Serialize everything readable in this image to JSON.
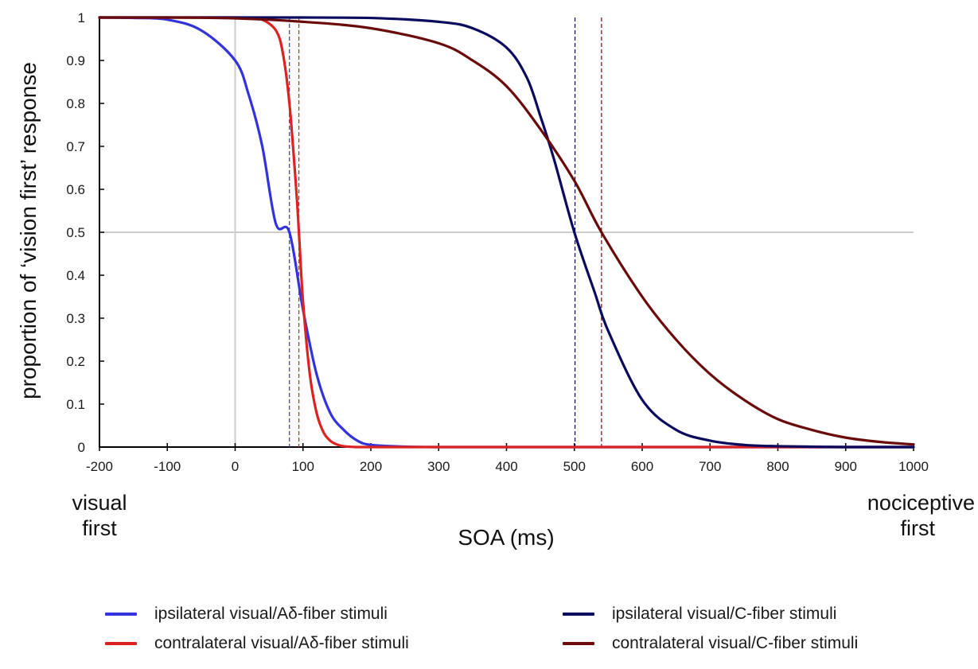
{
  "chart_data": {
    "type": "line",
    "xlabel": "SOA (ms)",
    "ylabel": "proportion of ‘vision first’ response",
    "xlim": [
      -200,
      1000
    ],
    "ylim": [
      0,
      1
    ],
    "x_ticks": [
      "-200",
      "-100",
      "0",
      "100",
      "200",
      "300",
      "400",
      "500",
      "600",
      "700",
      "800",
      "900",
      "1000"
    ],
    "y_ticks": [
      "0",
      "0.1",
      "0.2",
      "0.3",
      "0.4",
      "0.5",
      "0.6",
      "0.7",
      "0.8",
      "0.9",
      "1"
    ],
    "left_side_label": [
      "visual",
      "first"
    ],
    "right_side_label": [
      "nociceptive",
      "first"
    ],
    "reference_lines": {
      "x": 0,
      "y": 0.5,
      "color": "#cccccc"
    },
    "series": [
      {
        "name": "ipsilateral visual/Aδ-fiber stimuli",
        "color": "#3333dd",
        "x": [
          -200,
          -150,
          -100,
          -50,
          0,
          20,
          40,
          60,
          80,
          100,
          120,
          140,
          160,
          180,
          200,
          250,
          300,
          400,
          500,
          600,
          800,
          1000
        ],
        "y": [
          1.0,
          0.999,
          0.995,
          0.97,
          0.9,
          0.82,
          0.7,
          0.52,
          0.5,
          0.32,
          0.17,
          0.08,
          0.04,
          0.015,
          0.005,
          0.001,
          0,
          0,
          0,
          0,
          0,
          0
        ],
        "pse": 80
      },
      {
        "name": "contralateral visual/Aδ-fiber stimuli",
        "color": "#dd2222",
        "x": [
          -200,
          -100,
          0,
          20,
          40,
          60,
          70,
          80,
          90,
          94,
          100,
          110,
          120,
          130,
          140,
          150,
          160,
          180,
          200,
          300,
          500,
          1000
        ],
        "y": [
          1.0,
          1.0,
          1.0,
          0.999,
          0.995,
          0.97,
          0.92,
          0.8,
          0.6,
          0.5,
          0.34,
          0.17,
          0.08,
          0.035,
          0.015,
          0.006,
          0.002,
          0,
          0,
          0,
          0,
          0
        ],
        "pse": 94
      },
      {
        "name": "ipsilateral visual/C-fiber stimuli",
        "color": "#0a0a5e",
        "x": [
          -200,
          0,
          100,
          200,
          300,
          350,
          400,
          430,
          450,
          470,
          500,
          530,
          550,
          600,
          650,
          700,
          750,
          800,
          900,
          1000
        ],
        "y": [
          1.0,
          1.0,
          1.0,
          0.999,
          0.99,
          0.975,
          0.93,
          0.86,
          0.77,
          0.67,
          0.5,
          0.36,
          0.27,
          0.11,
          0.04,
          0.015,
          0.005,
          0.002,
          0,
          0
        ],
        "pse": 501
      },
      {
        "name": "contralateral visual/C-fiber stimuli",
        "color": "#6b0a0a",
        "x": [
          -200,
          -100,
          0,
          100,
          200,
          300,
          350,
          400,
          450,
          500,
          540,
          600,
          650,
          700,
          750,
          800,
          850,
          900,
          950,
          1000
        ],
        "y": [
          1.0,
          1.0,
          0.998,
          0.99,
          0.975,
          0.94,
          0.9,
          0.84,
          0.74,
          0.62,
          0.5,
          0.35,
          0.25,
          0.17,
          0.11,
          0.065,
          0.04,
          0.022,
          0.012,
          0.006
        ],
        "pse": 540
      }
    ],
    "grid": false,
    "legend_placement": "bottom"
  }
}
